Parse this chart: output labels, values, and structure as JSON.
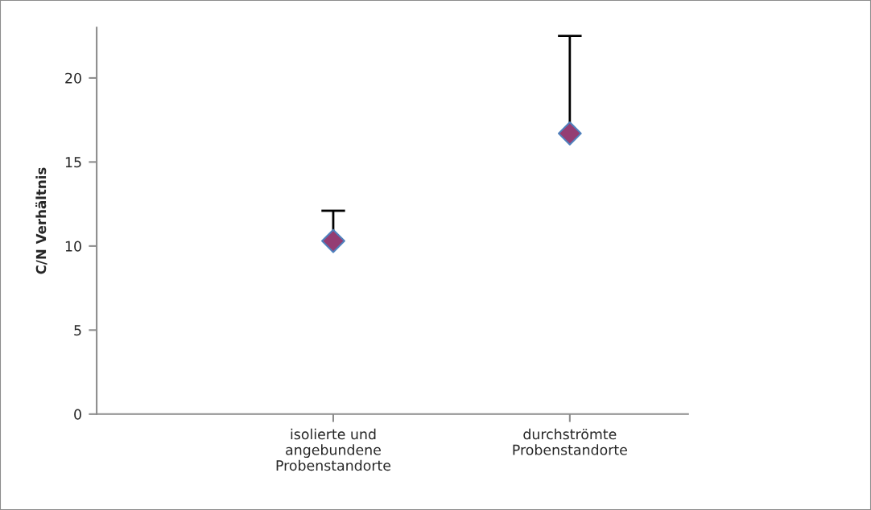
{
  "chart_data": {
    "type": "scatter",
    "ylabel": "C/N Verhältnis",
    "categories": [
      "isolierte und\nangebundene\nProbenstandorte",
      "durchströmte\nProbenstandorte"
    ],
    "values": [
      10.3,
      16.7
    ],
    "errors": [
      [
        10.3,
        12.1
      ],
      [
        16.7,
        22.5
      ]
    ],
    "color": "#943d73",
    "marker": "diamond",
    "ylim": [
      0,
      23
    ],
    "yticks": [
      0,
      5,
      10,
      15,
      20
    ],
    "grid": false,
    "legend": false
  }
}
